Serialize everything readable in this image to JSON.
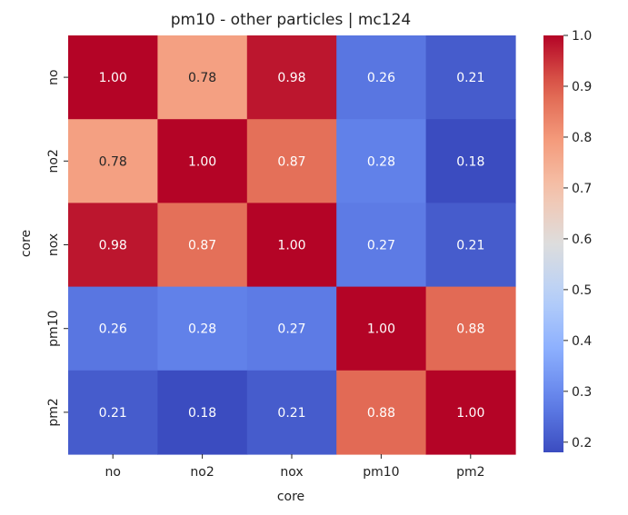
{
  "chart_data": {
    "type": "heatmap",
    "title": "pm10 - other particles | mc124",
    "xlabel": "core",
    "ylabel": "core",
    "x_categories": [
      "no",
      "no2",
      "nox",
      "pm10",
      "pm2"
    ],
    "y_categories": [
      "no",
      "no2",
      "nox",
      "pm10",
      "pm2"
    ],
    "values": [
      [
        1.0,
        0.78,
        0.98,
        0.26,
        0.21
      ],
      [
        0.78,
        1.0,
        0.87,
        0.28,
        0.18
      ],
      [
        0.98,
        0.87,
        1.0,
        0.27,
        0.21
      ],
      [
        0.26,
        0.28,
        0.27,
        1.0,
        0.88
      ],
      [
        0.21,
        0.18,
        0.21,
        0.88,
        1.0
      ]
    ],
    "cell_labels": [
      [
        "1.00",
        "0.78",
        "0.98",
        "0.26",
        "0.21"
      ],
      [
        "0.78",
        "1.00",
        "0.87",
        "0.28",
        "0.18"
      ],
      [
        "0.98",
        "0.87",
        "1.00",
        "0.27",
        "0.21"
      ],
      [
        "0.26",
        "0.28",
        "0.27",
        "1.00",
        "0.88"
      ],
      [
        "0.21",
        "0.18",
        "0.21",
        "0.88",
        "1.00"
      ]
    ],
    "colormap": "coolwarm",
    "colorbar": {
      "vmin": 0.18,
      "vmax": 1.0,
      "ticks": [
        "0.2",
        "0.3",
        "0.4",
        "0.5",
        "0.6",
        "0.7",
        "0.8",
        "0.9",
        "1.0"
      ]
    },
    "grid": false
  }
}
